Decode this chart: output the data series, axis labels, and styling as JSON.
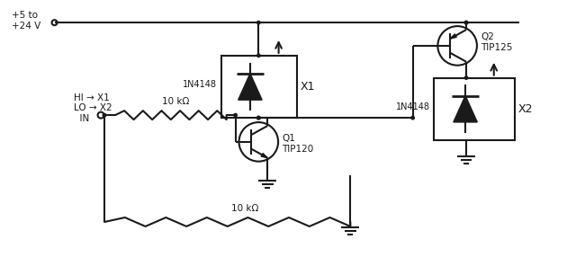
{
  "background_color": "#ffffff",
  "line_color": "#1a1a1a",
  "line_width": 1.5,
  "fig_width": 6.4,
  "fig_height": 2.86,
  "dpi": 100,
  "labels": {
    "vcc": "+5 to\n+24 V",
    "hi_lo": "HI → X1\nLO → X2\n  IN",
    "r1": "10 kΩ",
    "r2": "10 kΩ",
    "d1": "1N4148",
    "d2": "1N4148",
    "q1": "Q1\nTIP120",
    "q2": "Q2\nTIP125",
    "x1": "X1",
    "x2": "X2"
  }
}
